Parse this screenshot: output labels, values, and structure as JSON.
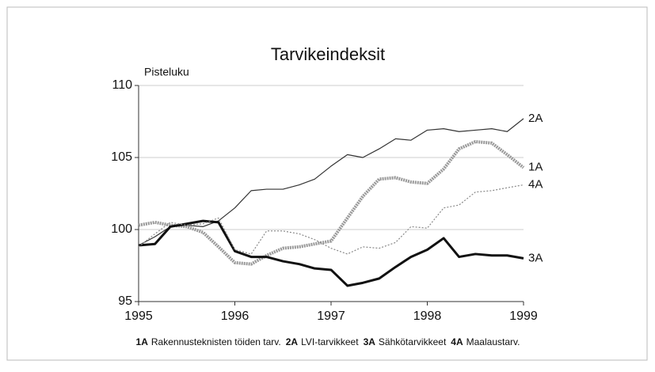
{
  "chart_data": {
    "type": "line",
    "title": "Tarvikeindeksit",
    "y_label": "Pisteluku",
    "x": [
      1995,
      1995.17,
      1995.33,
      1995.5,
      1995.67,
      1995.83,
      1996,
      1996.17,
      1996.33,
      1996.5,
      1996.67,
      1996.83,
      1997,
      1997.17,
      1997.33,
      1997.5,
      1997.67,
      1997.83,
      1998,
      1998.17,
      1998.33,
      1998.5,
      1998.67,
      1998.83,
      1999
    ],
    "series": [
      {
        "code": "1A",
        "name": "Rakennusteknisten töiden tarv.",
        "color": "#999999",
        "values": [
          100.3,
          100.5,
          100.3,
          100.2,
          99.8,
          98.8,
          97.7,
          97.6,
          98.2,
          98.7,
          98.8,
          99.0,
          99.2,
          100.8,
          102.3,
          103.5,
          103.6,
          103.3,
          103.2,
          104.2,
          105.6,
          106.1,
          106.0,
          105.2,
          104.3
        ]
      },
      {
        "code": "2A",
        "name": "LVI-tarvikkeet",
        "color": "#333333",
        "values": [
          98.9,
          99.5,
          100.2,
          100.3,
          100.2,
          100.6,
          101.5,
          102.7,
          102.8,
          102.8,
          103.1,
          103.5,
          104.4,
          105.2,
          105.0,
          105.6,
          106.3,
          106.2,
          106.9,
          107.0,
          106.8,
          106.9,
          107.0,
          106.8,
          107.7
        ]
      },
      {
        "code": "3A",
        "name": "Sähkötarvikkeet",
        "color": "#111111",
        "values": [
          98.9,
          99.0,
          100.2,
          100.4,
          100.6,
          100.5,
          98.5,
          98.1,
          98.1,
          97.8,
          97.6,
          97.3,
          97.2,
          96.1,
          96.3,
          96.6,
          97.4,
          98.1,
          98.6,
          99.4,
          98.1,
          98.3,
          98.2,
          98.2,
          98.0
        ]
      },
      {
        "code": "4A",
        "name": "Maalaustarv.",
        "color": "#888888",
        "values": [
          98.8,
          99.7,
          100.5,
          100.3,
          100.4,
          100.8,
          98.6,
          98.3,
          99.9,
          99.9,
          99.7,
          99.3,
          98.7,
          98.3,
          98.8,
          98.7,
          99.1,
          100.2,
          100.1,
          101.5,
          101.7,
          102.6,
          102.7,
          102.9,
          103.1
        ]
      }
    ],
    "xlim": [
      1995,
      1999
    ],
    "xticks": [
      1995,
      1996,
      1997,
      1998,
      1999
    ],
    "ylim": [
      95,
      110
    ],
    "yticks": [
      95,
      100,
      105,
      110
    ],
    "grid": true
  }
}
